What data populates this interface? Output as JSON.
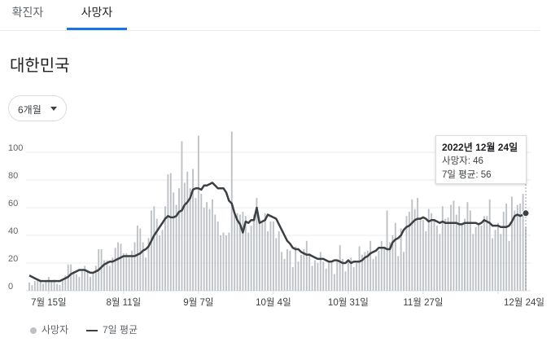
{
  "tabs": [
    {
      "label": "확진자",
      "selected": false
    },
    {
      "label": "사망자",
      "selected": true
    }
  ],
  "colors": {
    "accent": "#1a73e8",
    "bars": "#bdc1c6",
    "average_line": "#3c4043"
  },
  "region_title": "대한민국",
  "range_dropdown": {
    "value": "6개월",
    "icon": "caret-down-icon"
  },
  "tooltip": {
    "date": "2022년 12월 24일",
    "deaths_line": "사망자: 46",
    "avg_line": "7일 평균: 56"
  },
  "legend": {
    "deaths": "사망자",
    "average": "7일 평균"
  },
  "chart_data": {
    "type": "bar",
    "title": "",
    "xlabel": "",
    "ylabel": "",
    "ylim": [
      0,
      120
    ],
    "grid": true,
    "legend_position": "bottom-left",
    "y_ticks": [
      "0",
      "20",
      "40",
      "60",
      "80",
      "100"
    ],
    "x_tick_labels": [
      "7월 15일",
      "8월 11일",
      "9월 7일",
      "10월 4일",
      "10월 31일",
      "11월 27일",
      "12월 24일"
    ],
    "series": [
      {
        "name": "사망자",
        "type": "bar",
        "values": [
          6,
          4,
          7,
          8,
          8,
          5,
          7,
          10,
          7,
          8,
          5,
          4,
          8,
          11,
          19,
          19,
          14,
          12,
          10,
          14,
          18,
          15,
          10,
          13,
          18,
          30,
          30,
          22,
          22,
          18,
          24,
          31,
          35,
          34,
          27,
          27,
          24,
          29,
          35,
          47,
          45,
          35,
          24,
          38,
          58,
          61,
          52,
          40,
          44,
          61,
          84,
          85,
          71,
          62,
          74,
          108,
          78,
          86,
          74,
          88,
          67,
          112,
          70,
          60,
          64,
          59,
          66,
          55,
          50,
          40,
          42,
          40,
          42,
          115,
          55,
          56,
          55,
          57,
          54,
          42,
          47,
          55,
          67,
          49,
          49,
          56,
          43,
          50,
          50,
          38,
          43,
          28,
          23,
          30,
          29,
          17,
          32,
          21,
          26,
          30,
          36,
          27,
          18,
          22,
          20,
          28,
          21,
          16,
          21,
          20,
          12,
          22,
          33,
          23,
          14,
          21,
          24,
          17,
          20,
          32,
          26,
          28,
          29,
          36,
          23,
          25,
          29,
          36,
          32,
          58,
          35,
          40,
          49,
          25,
          45,
          28,
          54,
          57,
          66,
          59,
          67,
          53,
          51,
          43,
          59,
          56,
          51,
          47,
          41,
          61,
          52,
          53,
          62,
          65,
          55,
          61,
          49,
          52,
          64,
          58,
          41,
          46,
          48,
          47,
          54,
          54,
          66,
          38,
          44,
          49,
          41,
          57,
          63,
          36,
          68,
          58,
          62,
          63,
          70,
          46
        ]
      },
      {
        "name": "7일 평균",
        "type": "line",
        "values": [
          11,
          10,
          9,
          8,
          7,
          7,
          7,
          7,
          7,
          7,
          7,
          7,
          8,
          9,
          10,
          12,
          13,
          14,
          15,
          15,
          15,
          14,
          13,
          13,
          14,
          15,
          17,
          19,
          20,
          21,
          21,
          22,
          23,
          24,
          25,
          25,
          25,
          25,
          25,
          26,
          27,
          29,
          30,
          32,
          36,
          40,
          43,
          46,
          49,
          52,
          54,
          53,
          53,
          54,
          57,
          58,
          62,
          64,
          67,
          73,
          74,
          74,
          73,
          76,
          76,
          77,
          78,
          76,
          74,
          74,
          74,
          71,
          65,
          63,
          56,
          51,
          48,
          42,
          50,
          49,
          51,
          51,
          60,
          49,
          50,
          51,
          55,
          54,
          53,
          52,
          48,
          44,
          40,
          36,
          34,
          31,
          30,
          30,
          28,
          27,
          26,
          26,
          25,
          24,
          23,
          23,
          23,
          22,
          21,
          21,
          22,
          22,
          21,
          20,
          20,
          22,
          20,
          21,
          21,
          21,
          22,
          24,
          25,
          27,
          28,
          29,
          31,
          31,
          31,
          30,
          30,
          35,
          37,
          38,
          40,
          44,
          46,
          47,
          49,
          51,
          52,
          52,
          53,
          52,
          50,
          51,
          51,
          50,
          49,
          50,
          49,
          49,
          49,
          49,
          49,
          48,
          48,
          49,
          49,
          49,
          49,
          49,
          48,
          49,
          51,
          50,
          49,
          47,
          47,
          47,
          46,
          46,
          46,
          47,
          50,
          54,
          55,
          54,
          55,
          56
        ]
      }
    ]
  }
}
